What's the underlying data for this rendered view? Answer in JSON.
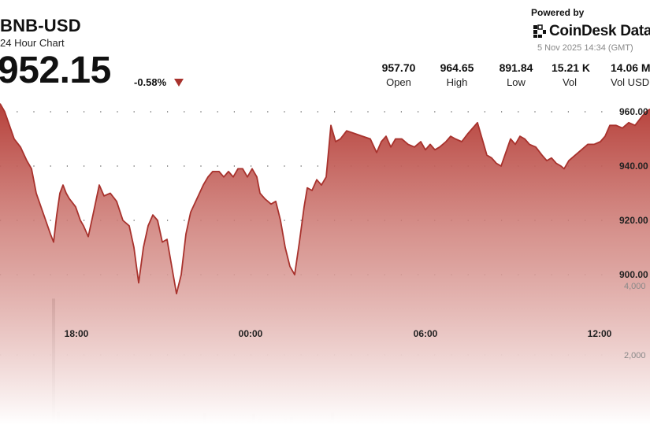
{
  "header": {
    "pair": "BNB-USD",
    "subtitle": "24 Hour Chart",
    "price": "952.15",
    "change": "-0.58%",
    "direction_color": "#a8322d"
  },
  "branding": {
    "powered_by": "Powered by",
    "brand_name": "CoinDesk Data",
    "timestamp": "5 Nov 2025 14:34 (GMT)"
  },
  "stats": [
    {
      "value": "957.70",
      "label": "Open"
    },
    {
      "value": "964.65",
      "label": "High"
    },
    {
      "value": "891.84",
      "label": "Low"
    },
    {
      "value": "15.21 K",
      "label": "Vol"
    },
    {
      "value": "14.06 M",
      "label": "Vol USD"
    }
  ],
  "chart_data": {
    "type": "area",
    "x_ticks": [
      "18:00",
      "00:00",
      "06:00",
      "12:00"
    ],
    "y_ticks": [
      "960.00",
      "940.00",
      "920.00",
      "900.00"
    ],
    "volume_ticks": [
      "4,000",
      "2,000"
    ],
    "ylim": [
      900,
      960
    ],
    "volume_lim": [
      0,
      4000
    ],
    "grid": "dotted horizontal",
    "colors": {
      "line": "#a8322d",
      "fill_top": "#b6403a",
      "fill_bottom": "#ffffff",
      "volume": "#555555"
    },
    "price_series": [
      [
        0,
        963
      ],
      [
        6,
        960
      ],
      [
        12,
        955
      ],
      [
        18,
        950
      ],
      [
        26,
        947
      ],
      [
        34,
        942
      ],
      [
        40,
        939
      ],
      [
        46,
        930
      ],
      [
        52,
        925
      ],
      [
        58,
        920
      ],
      [
        64,
        915
      ],
      [
        68,
        912
      ],
      [
        72,
        922
      ],
      [
        76,
        930
      ],
      [
        80,
        933
      ],
      [
        84,
        930
      ],
      [
        88,
        928
      ],
      [
        96,
        925
      ],
      [
        102,
        920
      ],
      [
        106,
        918
      ],
      [
        112,
        914
      ],
      [
        118,
        922
      ],
      [
        126,
        933
      ],
      [
        132,
        929
      ],
      [
        140,
        930
      ],
      [
        148,
        927
      ],
      [
        156,
        920
      ],
      [
        164,
        918
      ],
      [
        170,
        910
      ],
      [
        176,
        897
      ],
      [
        182,
        910
      ],
      [
        188,
        918
      ],
      [
        194,
        922
      ],
      [
        200,
        920
      ],
      [
        206,
        912
      ],
      [
        212,
        913
      ],
      [
        218,
        903
      ],
      [
        224,
        893
      ],
      [
        230,
        900
      ],
      [
        236,
        915
      ],
      [
        242,
        923
      ],
      [
        250,
        928
      ],
      [
        258,
        933
      ],
      [
        264,
        936
      ],
      [
        270,
        938
      ],
      [
        278,
        938
      ],
      [
        284,
        936
      ],
      [
        290,
        938
      ],
      [
        296,
        936
      ],
      [
        302,
        939
      ],
      [
        308,
        939
      ],
      [
        314,
        936
      ],
      [
        320,
        939
      ],
      [
        326,
        936
      ],
      [
        330,
        930
      ],
      [
        336,
        928
      ],
      [
        344,
        926
      ],
      [
        350,
        927
      ],
      [
        356,
        920
      ],
      [
        362,
        910
      ],
      [
        368,
        903
      ],
      [
        374,
        900
      ],
      [
        380,
        912
      ],
      [
        386,
        925
      ],
      [
        390,
        932
      ],
      [
        396,
        931
      ],
      [
        402,
        935
      ],
      [
        408,
        933
      ],
      [
        414,
        936
      ],
      [
        420,
        955
      ],
      [
        426,
        949
      ],
      [
        432,
        950
      ],
      [
        440,
        953
      ],
      [
        450,
        952
      ],
      [
        460,
        951
      ],
      [
        470,
        950
      ],
      [
        478,
        945
      ],
      [
        484,
        949
      ],
      [
        490,
        951
      ],
      [
        496,
        947
      ],
      [
        502,
        950
      ],
      [
        510,
        950
      ],
      [
        518,
        948
      ],
      [
        526,
        947
      ],
      [
        534,
        949
      ],
      [
        540,
        946
      ],
      [
        546,
        948
      ],
      [
        552,
        946
      ],
      [
        558,
        947
      ],
      [
        566,
        949
      ],
      [
        572,
        951
      ],
      [
        578,
        950
      ],
      [
        586,
        949
      ],
      [
        594,
        952
      ],
      [
        600,
        954
      ],
      [
        606,
        956
      ],
      [
        612,
        950
      ],
      [
        618,
        944
      ],
      [
        624,
        943
      ],
      [
        630,
        941
      ],
      [
        636,
        940
      ],
      [
        642,
        945
      ],
      [
        648,
        950
      ],
      [
        654,
        948
      ],
      [
        660,
        951
      ],
      [
        666,
        950
      ],
      [
        672,
        948
      ],
      [
        680,
        947
      ],
      [
        688,
        944
      ],
      [
        694,
        942
      ],
      [
        700,
        943
      ],
      [
        706,
        941
      ],
      [
        712,
        940
      ],
      [
        716,
        939
      ],
      [
        722,
        942
      ],
      [
        730,
        944
      ],
      [
        738,
        946
      ],
      [
        746,
        948
      ],
      [
        754,
        948
      ],
      [
        762,
        949
      ],
      [
        768,
        951
      ],
      [
        774,
        955
      ],
      [
        782,
        955
      ],
      [
        790,
        954
      ],
      [
        798,
        956
      ],
      [
        806,
        955
      ],
      [
        814,
        958
      ],
      [
        820,
        960
      ],
      [
        825,
        961
      ]
    ],
    "volume_bars": [
      [
        68,
        3650
      ],
      [
        74,
        380
      ],
      [
        80,
        140
      ],
      [
        86,
        90
      ],
      [
        92,
        60
      ],
      [
        100,
        120
      ],
      [
        108,
        80
      ],
      [
        116,
        60
      ],
      [
        124,
        150
      ],
      [
        132,
        90
      ],
      [
        140,
        70
      ],
      [
        148,
        110
      ],
      [
        156,
        60
      ],
      [
        164,
        80
      ],
      [
        172,
        100
      ],
      [
        180,
        120
      ],
      [
        188,
        150
      ],
      [
        196,
        90
      ],
      [
        204,
        120
      ],
      [
        212,
        70
      ],
      [
        220,
        110
      ],
      [
        228,
        90
      ],
      [
        236,
        130
      ],
      [
        244,
        70
      ],
      [
        252,
        80
      ],
      [
        260,
        340
      ],
      [
        268,
        100
      ],
      [
        276,
        90
      ],
      [
        284,
        130
      ],
      [
        292,
        80
      ],
      [
        300,
        100
      ],
      [
        308,
        70
      ],
      [
        316,
        110
      ],
      [
        322,
        320
      ],
      [
        330,
        150
      ],
      [
        338,
        90
      ],
      [
        346,
        120
      ],
      [
        354,
        80
      ],
      [
        362,
        150
      ],
      [
        370,
        220
      ],
      [
        378,
        90
      ],
      [
        386,
        140
      ],
      [
        394,
        100
      ],
      [
        402,
        80
      ],
      [
        410,
        70
      ],
      [
        418,
        130
      ],
      [
        422,
        350
      ],
      [
        430,
        100
      ],
      [
        438,
        80
      ],
      [
        446,
        70
      ],
      [
        454,
        110
      ],
      [
        462,
        90
      ],
      [
        470,
        70
      ],
      [
        478,
        80
      ],
      [
        486,
        100
      ],
      [
        494,
        60
      ],
      [
        502,
        90
      ],
      [
        510,
        70
      ],
      [
        518,
        80
      ],
      [
        526,
        110
      ],
      [
        534,
        70
      ],
      [
        542,
        80
      ],
      [
        550,
        100
      ],
      [
        558,
        60
      ],
      [
        566,
        90
      ],
      [
        574,
        70
      ],
      [
        582,
        80
      ],
      [
        590,
        120
      ],
      [
        598,
        70
      ],
      [
        606,
        80
      ],
      [
        614,
        60
      ],
      [
        622,
        90
      ],
      [
        630,
        70
      ],
      [
        638,
        80
      ],
      [
        646,
        60
      ],
      [
        654,
        90
      ],
      [
        662,
        70
      ],
      [
        670,
        80
      ],
      [
        678,
        100
      ],
      [
        686,
        60
      ],
      [
        694,
        90
      ],
      [
        702,
        70
      ],
      [
        710,
        80
      ],
      [
        718,
        60
      ],
      [
        726,
        90
      ],
      [
        734,
        70
      ],
      [
        742,
        80
      ],
      [
        750,
        110
      ],
      [
        758,
        70
      ],
      [
        766,
        80
      ],
      [
        774,
        60
      ],
      [
        782,
        90
      ],
      [
        790,
        70
      ],
      [
        798,
        80
      ],
      [
        806,
        60
      ],
      [
        814,
        90
      ]
    ]
  }
}
